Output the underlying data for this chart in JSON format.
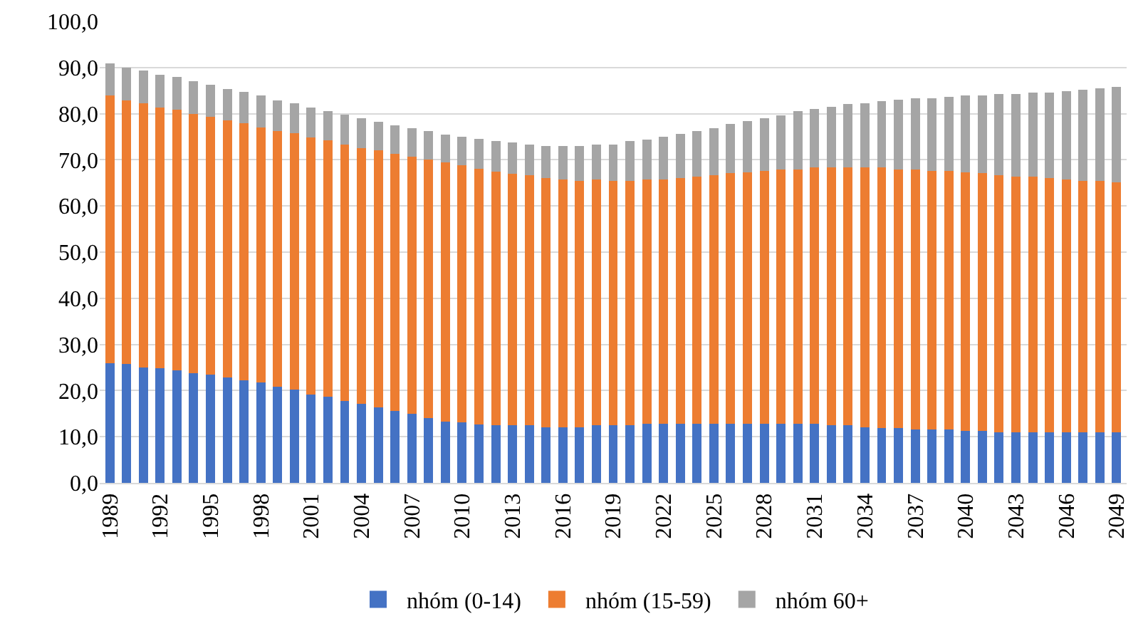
{
  "chart_data": {
    "type": "bar",
    "stacked": true,
    "categories": [
      "1989",
      null,
      null,
      "1992",
      null,
      null,
      "1995",
      null,
      null,
      "1998",
      null,
      null,
      "2001",
      null,
      null,
      "2004",
      null,
      null,
      "2007",
      null,
      null,
      "2010",
      null,
      null,
      "2013",
      null,
      null,
      "2016",
      null,
      null,
      "2019",
      null,
      null,
      "2022",
      null,
      null,
      "2025",
      null,
      null,
      "2028",
      null,
      null,
      "2031",
      null,
      null,
      "2034",
      null,
      null,
      "2037",
      null,
      null,
      "2040",
      null,
      null,
      "2043",
      null,
      null,
      "2046",
      null,
      null,
      "2049"
    ],
    "series": [
      {
        "name": "nhóm (0-14)",
        "color": "#4472c4",
        "values": [
          26.0,
          25.7,
          25.0,
          24.8,
          24.4,
          23.8,
          23.5,
          22.9,
          22.3,
          21.7,
          20.8,
          20.2,
          19.2,
          18.6,
          17.8,
          17.1,
          16.3,
          15.6,
          15.0,
          14.0,
          13.3,
          13.1,
          12.7,
          12.5,
          12.5,
          12.5,
          12.1,
          12.1,
          12.1,
          12.5,
          12.5,
          12.5,
          12.8,
          12.8,
          12.8,
          12.8,
          12.8,
          12.8,
          12.8,
          12.8,
          12.8,
          12.8,
          12.8,
          12.5,
          12.5,
          12.1,
          11.9,
          11.9,
          11.6,
          11.6,
          11.6,
          11.3,
          11.3,
          10.9,
          10.9,
          10.9,
          10.9,
          10.9,
          10.9,
          10.9,
          10.9
        ]
      },
      {
        "name": "nhóm (15-59)",
        "color": "#ed7d31",
        "values": [
          57.9,
          57.2,
          57.3,
          56.6,
          56.4,
          56.1,
          55.8,
          55.7,
          55.7,
          55.3,
          55.5,
          55.5,
          55.7,
          55.6,
          55.5,
          55.5,
          55.7,
          55.7,
          55.7,
          56.0,
          56.1,
          55.7,
          55.4,
          55.0,
          54.4,
          54.1,
          54.0,
          53.7,
          53.3,
          53.3,
          52.9,
          52.9,
          53.0,
          53.0,
          53.3,
          53.6,
          53.8,
          54.3,
          54.5,
          54.8,
          55.1,
          55.1,
          55.5,
          55.8,
          55.8,
          56.2,
          56.4,
          56.0,
          56.3,
          56.0,
          56.0,
          56.0,
          55.8,
          55.7,
          55.5,
          55.5,
          55.2,
          54.9,
          54.5,
          54.5,
          54.2
        ]
      },
      {
        "name": "nhóm 60+",
        "color": "#a5a5a5",
        "values": [
          7.0,
          7.1,
          7.1,
          7.1,
          7.1,
          7.1,
          7.0,
          6.8,
          6.7,
          6.9,
          6.6,
          6.6,
          6.5,
          6.3,
          6.5,
          6.4,
          6.2,
          6.2,
          6.1,
          6.2,
          6.1,
          6.2,
          6.5,
          6.5,
          6.8,
          6.7,
          6.9,
          7.2,
          7.6,
          7.5,
          7.9,
          8.6,
          8.6,
          9.2,
          9.5,
          9.8,
          10.2,
          10.7,
          11.1,
          11.4,
          11.8,
          12.7,
          12.7,
          13.2,
          13.8,
          14.0,
          14.4,
          15.1,
          15.4,
          15.7,
          16.0,
          16.7,
          16.9,
          17.6,
          17.8,
          18.1,
          18.4,
          19.1,
          19.8,
          20.1,
          20.7
        ]
      }
    ],
    "ylim": [
      0,
      100
    ],
    "yticks": [
      {
        "value": 0,
        "label": "0,0"
      },
      {
        "value": 10,
        "label": "10,0"
      },
      {
        "value": 20,
        "label": "20,0"
      },
      {
        "value": 30,
        "label": "30,0"
      },
      {
        "value": 40,
        "label": "40,0"
      },
      {
        "value": 50,
        "label": "50,0"
      },
      {
        "value": 60,
        "label": "60,0"
      },
      {
        "value": 70,
        "label": "70,0"
      },
      {
        "value": 80,
        "label": "80,0"
      },
      {
        "value": 90,
        "label": "90,0"
      },
      {
        "value": 100,
        "label": "100,0"
      }
    ],
    "grid": "y",
    "legend": "bottom"
  }
}
